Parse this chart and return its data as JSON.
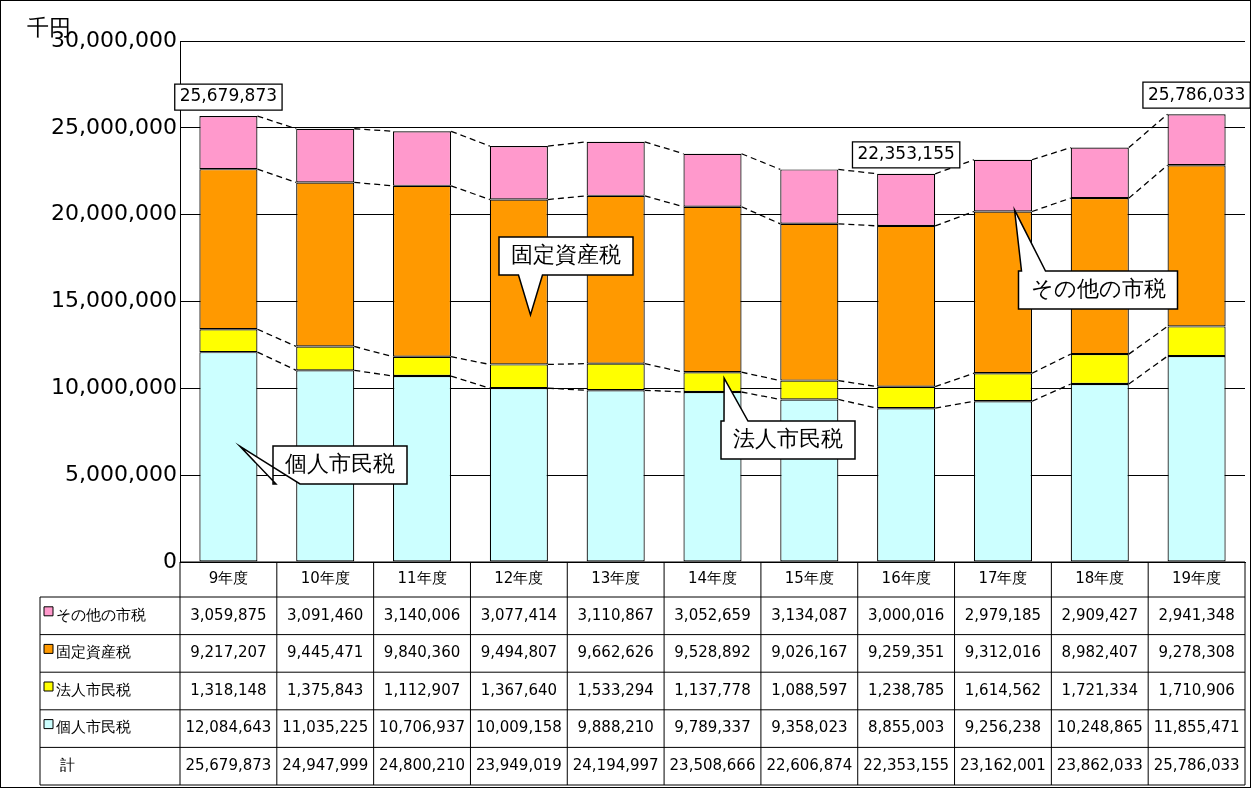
{
  "chart_data": {
    "type": "bar",
    "stacked": true,
    "ylabel": "千円",
    "categories": [
      "9年度",
      "10年度",
      "11年度",
      "12年度",
      "13年度",
      "14年度",
      "15年度",
      "16年度",
      "17年度",
      "18年度",
      "19年度"
    ],
    "series": [
      {
        "name": "個人市民税",
        "color": "#ccffff",
        "values": [
          12084643,
          11035225,
          10706937,
          10009158,
          9888210,
          9789337,
          9358023,
          8855003,
          9256238,
          10248865,
          11855471
        ],
        "value_labels": [
          "12,084,643",
          "11,035,225",
          "10,706,937",
          "10,009,158",
          "9,888,210",
          "9,789,337",
          "9,358,023",
          "8,855,003",
          "9,256,238",
          "10,248,865",
          "11,855,471"
        ]
      },
      {
        "name": "法人市民税",
        "color": "#ffff00",
        "values": [
          1318148,
          1375843,
          1112907,
          1367640,
          1533294,
          1137778,
          1088597,
          1238785,
          1614562,
          1721334,
          1710906
        ],
        "value_labels": [
          "1,318,148",
          "1,375,843",
          "1,112,907",
          "1,367,640",
          "1,533,294",
          "1,137,778",
          "1,088,597",
          "1,238,785",
          "1,614,562",
          "1,721,334",
          "1,710,906"
        ]
      },
      {
        "name": "固定資産税",
        "color": "#ff9900",
        "values": [
          9217207,
          9445471,
          9840360,
          9494807,
          9662626,
          9528892,
          9026167,
          9259351,
          9312016,
          8982407,
          9278308
        ],
        "value_labels": [
          "9,217,207",
          "9,445,471",
          "9,840,360",
          "9,494,807",
          "9,662,626",
          "9,528,892",
          "9,026,167",
          "9,259,351",
          "9,312,016",
          "8,982,407",
          "9,278,308"
        ]
      },
      {
        "name": "その他の市税",
        "color": "#ff99cc",
        "values": [
          3059875,
          3091460,
          3140006,
          3077414,
          3110867,
          3052659,
          3134087,
          3000016,
          2979185,
          2909427,
          2941348
        ],
        "value_labels": [
          "3,059,875",
          "3,091,460",
          "3,140,006",
          "3,077,414",
          "3,110,867",
          "3,052,659",
          "3,134,087",
          "3,000,016",
          "2,979,185",
          "2,909,427",
          "2,941,348"
        ]
      }
    ],
    "annotations": [
      "計",
      {
        "text": "25,679,873",
        "x": "9年度",
        "y": 25679873
      },
      {
        "text": "22,353,155",
        "x": "16年度",
        "y": 22353155
      },
      {
        "text": "25,786,033",
        "x": "19年度",
        "y": 25786033
      },
      "25,679,873",
      "24,947,999",
      "24,800,210",
      "23,949,019",
      "24,194,997",
      "23,508,666",
      "22,606,874",
      "22,353,155",
      "23,162,001",
      "23,862,033",
      "25,786,033"
    ],
    "ylim": [
      0,
      30000000
    ],
    "yticks": [
      0,
      {
        "value": 5000000,
        "label": "5,000,000"
      },
      {
        "value": 10000000,
        "label": "10,000,000"
      },
      {
        "value": 15000000,
        "label": "15,000,000"
      },
      {
        "value": 20000000,
        "label": "20,000,000"
      },
      {
        "value": 25000000,
        "label": "25,000,000"
      },
      {
        "value": 30000000,
        "label": "30,000,000"
      }
    ],
    "grid": "y",
    "legend": "bottom"
  }
}
